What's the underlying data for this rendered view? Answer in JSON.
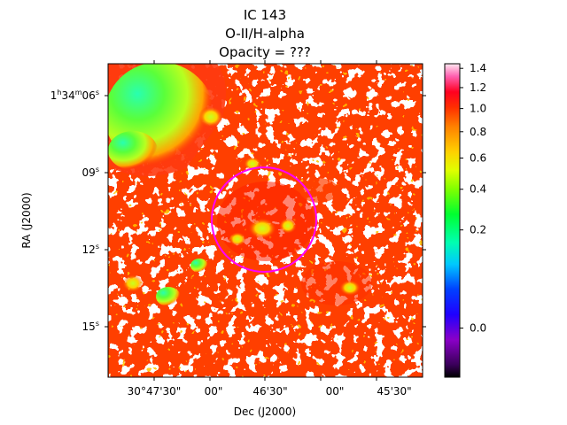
{
  "chart_data": {
    "type": "heatmap",
    "title_lines": [
      "IC 143",
      "O-II/H-alpha",
      "Opacity = ???"
    ],
    "xlabel": "Dec (J2000)",
    "ylabel": "RA (J2000)",
    "x_ticks": [
      "30°47'30\"",
      "00\"",
      "46'30\"",
      "00\"",
      "45'30\""
    ],
    "y_ticks": [
      {
        "h": "1",
        "m": "34",
        "s": "06",
        "unit_h": "h",
        "unit_m": "m",
        "unit_s": "s"
      },
      {
        "s": "09",
        "unit_s": "s"
      },
      {
        "s": "12",
        "unit_s": "s"
      },
      {
        "s": "15",
        "unit_s": "s"
      }
    ],
    "colorbar": {
      "colormap": "gist_ncar-like (black-purple-blue-cyan-green-yellow-orange-red-pink-white)",
      "tick_labels": [
        "0.0",
        "0.2",
        "0.4",
        "0.6",
        "0.8",
        "1.0",
        "1.2",
        "1.4"
      ],
      "tick_values": [
        0.0,
        0.2,
        0.4,
        0.6,
        0.8,
        1.0,
        1.2,
        1.4
      ],
      "scale": "square-root stretch",
      "range": [
        -0.05,
        1.45
      ]
    },
    "overlays": [
      {
        "type": "circle",
        "color": "#ff00ff",
        "description": "aperture marker"
      }
    ],
    "features": [
      {
        "region": "upper-left",
        "value_range": [
          0.35,
          0.65
        ]
      },
      {
        "region": "center-right",
        "value_range": [
          0.8,
          1.0
        ]
      }
    ]
  }
}
